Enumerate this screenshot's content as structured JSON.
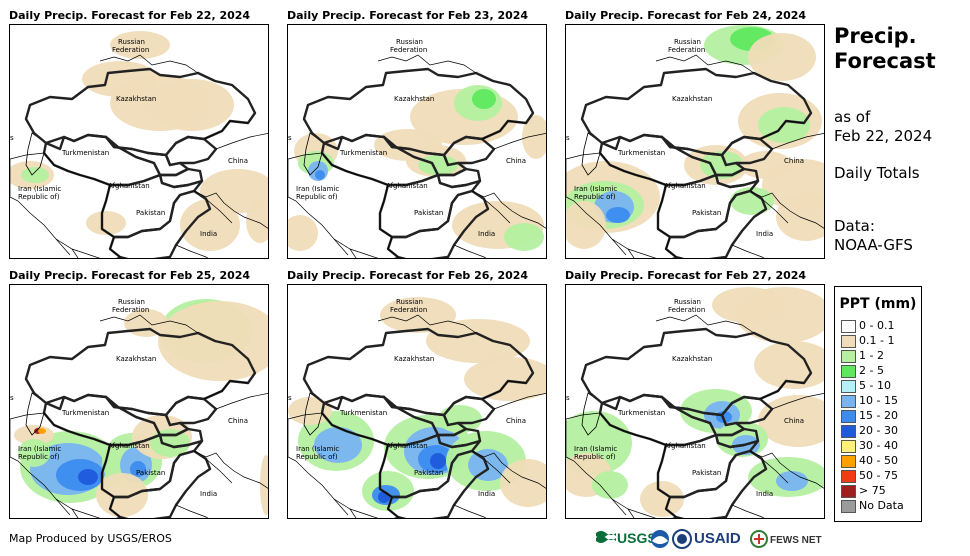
{
  "panels": [
    {
      "title": "Daily Precip. Forecast for Feb 22, 2024",
      "level": 0
    },
    {
      "title": "Daily Precip. Forecast for Feb 23, 2024",
      "level": 1
    },
    {
      "title": "Daily Precip. Forecast for Feb 24, 2024",
      "level": 2
    },
    {
      "title": "Daily Precip. Forecast for Feb 25, 2024",
      "level": 3
    },
    {
      "title": "Daily Precip. Forecast for Feb 26, 2024",
      "level": 4
    },
    {
      "title": "Daily Precip. Forecast for Feb 27, 2024",
      "level": 2
    }
  ],
  "map_labels": {
    "russia_1": "Russian",
    "russia_2": "Federation",
    "kazakhstan": "Kazakhstan",
    "turkmenistan": "Turkmenistan",
    "china": "China",
    "iran_1": "Iran  (Islamic",
    "iran_2": "Republic of)",
    "afghanistan": "Afghanistan",
    "pakistan": "Pakistan",
    "india": "India",
    "edge_s": "s"
  },
  "side": {
    "title_1": "Precip.",
    "title_2": "Forecast",
    "asof_1": "as of",
    "asof_2": "Feb 22, 2024",
    "totals": "Daily Totals",
    "data_1": "Data:",
    "data_2": "NOAA-GFS"
  },
  "legend": {
    "title": "PPT (mm)",
    "items": [
      {
        "label": "0 - 0.1",
        "color": "#ffffff"
      },
      {
        "label": "0.1 - 1",
        "color": "#f0dcb8"
      },
      {
        "label": "1 - 2",
        "color": "#b4f0a0"
      },
      {
        "label": "2 - 5",
        "color": "#5fe85f"
      },
      {
        "label": "5 - 10",
        "color": "#b4f0f8"
      },
      {
        "label": "10 - 15",
        "color": "#78b4f0"
      },
      {
        "label": "15 - 20",
        "color": "#3c8cf0"
      },
      {
        "label": "20 - 30",
        "color": "#1e5adc"
      },
      {
        "label": "30 - 40",
        "color": "#fff078"
      },
      {
        "label": "40 - 50",
        "color": "#ffa000"
      },
      {
        "label": "50 - 75",
        "color": "#f03c14"
      },
      {
        "label": "> 75",
        "color": "#a01e1e"
      },
      {
        "label": "No Data",
        "color": "#9b9b9b"
      }
    ]
  },
  "credit": "Map Produced by USGS/EROS",
  "logos": {
    "usgs": "USGS",
    "usaid": "USAID",
    "fews": "FEWS NET"
  }
}
